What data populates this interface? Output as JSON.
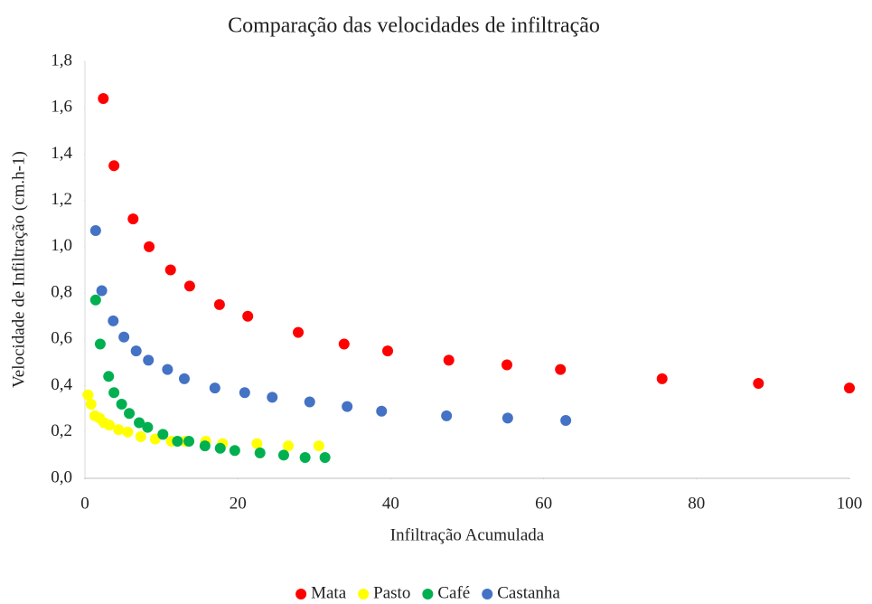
{
  "chart_data": {
    "type": "scatter",
    "title": "Comparação das velocidades de infiltração",
    "xlabel": "Infiltração Acumulada",
    "ylabel": "Velocidade de Infiltração (cm.h-1)",
    "xlim": [
      0,
      100
    ],
    "xticks": [
      0,
      20,
      40,
      60,
      80,
      100
    ],
    "ylim": [
      0,
      1.8
    ],
    "yticks": [
      {
        "value": 0,
        "label": "0,0"
      },
      {
        "value": 0.2,
        "label": "0,2"
      },
      {
        "value": 0.4,
        "label": "0,4"
      },
      {
        "value": 0.6,
        "label": "0,6"
      },
      {
        "value": 0.8,
        "label": "0,8"
      },
      {
        "value": 1.0,
        "label": "1,0"
      },
      {
        "value": 1.2,
        "label": "1,2"
      },
      {
        "value": 1.4,
        "label": "1,4"
      },
      {
        "value": 1.6,
        "label": "1,6"
      },
      {
        "value": 1.8,
        "label": "1,8"
      }
    ],
    "legend": "bottom",
    "series": [
      {
        "name": "Mata",
        "color": "#ff0000",
        "x": [
          2.4,
          3.8,
          6.3,
          8.4,
          11.2,
          13.7,
          17.6,
          21.3,
          27.9,
          33.9,
          39.6,
          47.6,
          55.2,
          62.2,
          75.5,
          88.1,
          100
        ],
        "values": [
          1.64,
          1.35,
          1.12,
          1.0,
          0.9,
          0.83,
          0.75,
          0.7,
          0.63,
          0.58,
          0.55,
          0.51,
          0.49,
          0.47,
          0.43,
          0.41,
          0.39
        ]
      },
      {
        "name": "Pasto",
        "color": "#ffff00",
        "x": [
          0.4,
          0.8,
          1.3,
          1.9,
          2.5,
          3.2,
          4.4,
          5.6,
          7.3,
          9.2,
          11.3,
          13.1,
          15.8,
          18,
          22.5,
          26.6,
          30.6
        ],
        "values": [
          0.36,
          0.32,
          0.27,
          0.26,
          0.24,
          0.23,
          0.21,
          0.2,
          0.18,
          0.17,
          0.16,
          0.16,
          0.16,
          0.15,
          0.15,
          0.14,
          0.14
        ]
      },
      {
        "name": "Café",
        "color": "#00b050",
        "x": [
          1.4,
          2.0,
          3.1,
          3.8,
          4.8,
          5.8,
          7.1,
          8.2,
          10.2,
          12.1,
          13.6,
          15.7,
          17.7,
          19.6,
          22.9,
          26,
          28.8,
          31.4
        ],
        "values": [
          0.77,
          0.58,
          0.44,
          0.37,
          0.32,
          0.28,
          0.24,
          0.22,
          0.19,
          0.16,
          0.16,
          0.14,
          0.13,
          0.12,
          0.11,
          0.1,
          0.09,
          0.09
        ]
      },
      {
        "name": "Castanha",
        "color": "#4472c4",
        "x": [
          1.4,
          2.2,
          3.7,
          5.1,
          6.7,
          8.3,
          10.8,
          13,
          17,
          20.9,
          24.5,
          29.4,
          34.3,
          38.8,
          47.3,
          55.3,
          62.9
        ],
        "values": [
          1.07,
          0.81,
          0.68,
          0.61,
          0.55,
          0.51,
          0.47,
          0.43,
          0.39,
          0.37,
          0.35,
          0.33,
          0.31,
          0.29,
          0.27,
          0.26,
          0.25
        ]
      }
    ]
  }
}
